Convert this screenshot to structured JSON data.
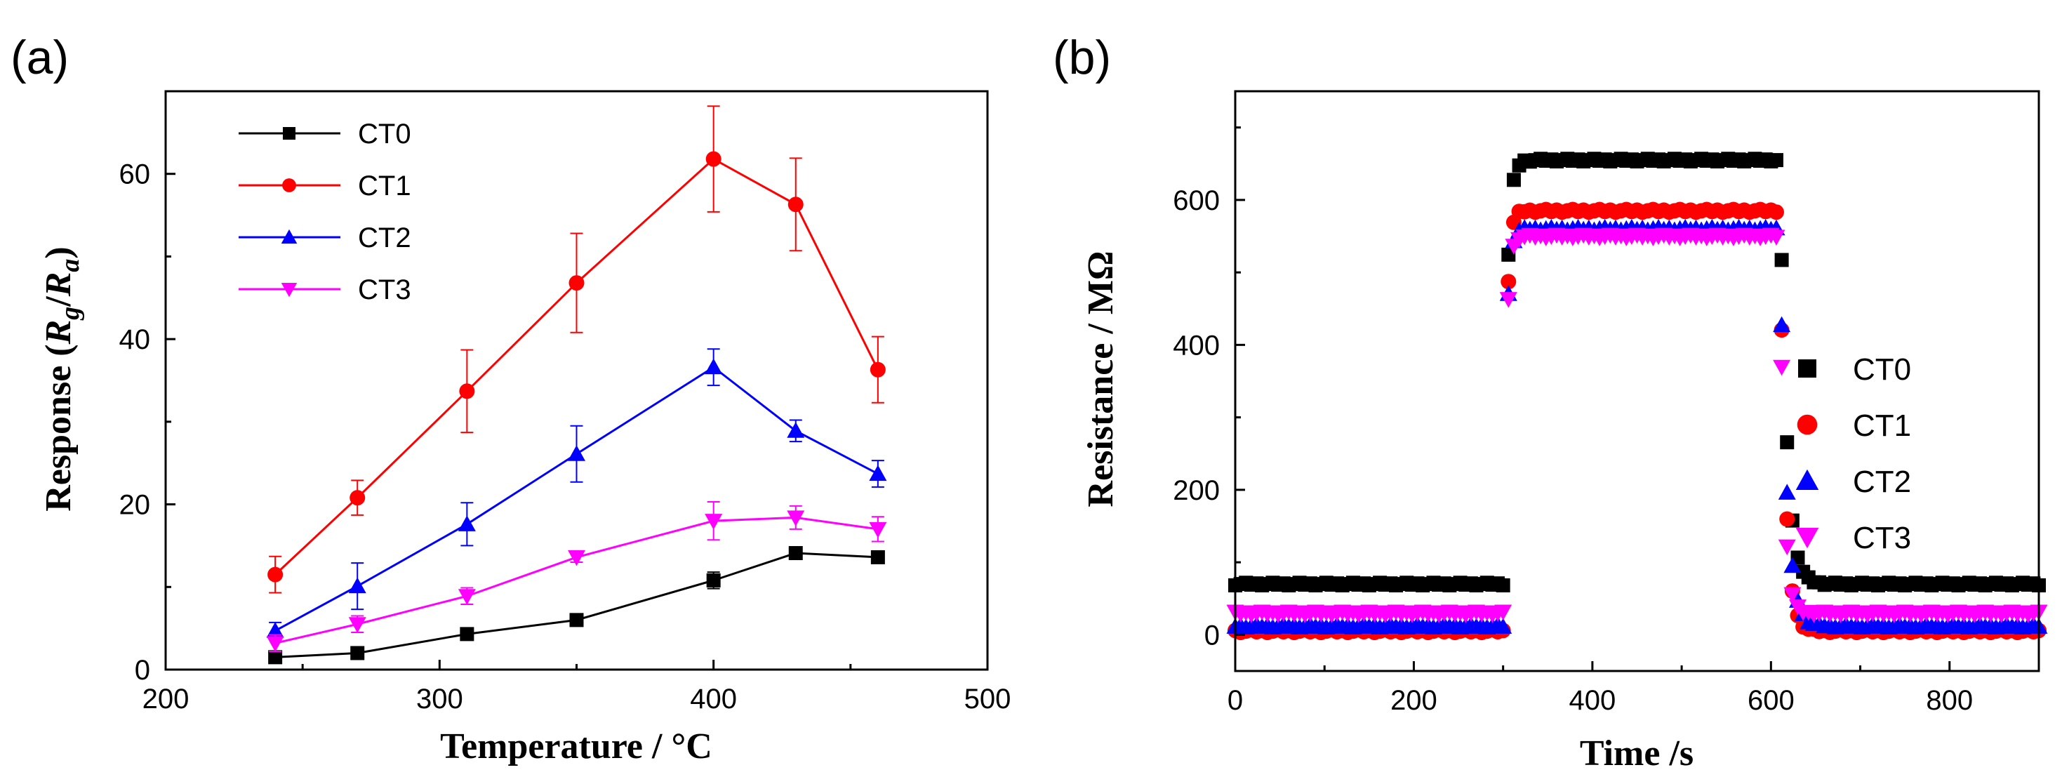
{
  "chart_data": [
    {
      "type": "line",
      "panel_label": "(a)",
      "xlabel": "Temperature / °C",
      "ylabel_prefix": "Response (",
      "ylabel_R1": "R",
      "ylabel_sub1": "g",
      "ylabel_slash": "/",
      "ylabel_R2": "R",
      "ylabel_sub2": "a",
      "ylabel_suffix": ")",
      "xlim": [
        200,
        500
      ],
      "ylim": [
        0,
        70
      ],
      "xticks": [
        200,
        300,
        400,
        500
      ],
      "yticks": [
        0,
        20,
        40,
        60
      ],
      "legend_position": "top-left",
      "x": [
        240,
        270,
        310,
        350,
        400,
        430,
        460
      ],
      "series": [
        {
          "name": "CT0",
          "color": "#000000",
          "marker": "square",
          "values": [
            1.5,
            2.0,
            4.3,
            6.0,
            10.8,
            14.1,
            13.6
          ],
          "errors": [
            0.3,
            0.4,
            0.4,
            0.7,
            1.0,
            0.6,
            0.4
          ]
        },
        {
          "name": "CT1",
          "color": "#ff0000",
          "marker": "circle",
          "values": [
            11.5,
            20.8,
            33.7,
            46.8,
            61.8,
            56.3,
            36.3
          ],
          "errors": [
            2.2,
            2.1,
            5.0,
            6.0,
            6.4,
            5.6,
            4.0
          ]
        },
        {
          "name": "CT2",
          "color": "#0000ff",
          "marker": "triangle-up",
          "values": [
            4.7,
            10.1,
            17.6,
            26.1,
            36.6,
            28.9,
            23.7
          ],
          "errors": [
            1.0,
            2.8,
            2.6,
            3.4,
            2.2,
            1.3,
            1.6
          ]
        },
        {
          "name": "CT3",
          "color": "#ff00ff",
          "marker": "triangle-down",
          "values": [
            3.2,
            5.5,
            8.9,
            13.6,
            18.0,
            18.4,
            17.0
          ],
          "errors": [
            1.0,
            1.0,
            1.0,
            0.6,
            2.3,
            1.4,
            1.5
          ]
        }
      ]
    },
    {
      "type": "scatter",
      "panel_label": "(b)",
      "xlabel": "Time /s",
      "ylabel": "Resistance / MΩ",
      "xlim": [
        0,
        900
      ],
      "ylim": [
        -50,
        750
      ],
      "xticks": [
        0,
        200,
        400,
        600,
        800
      ],
      "yticks": [
        0,
        200,
        400,
        600
      ],
      "legend_position": "right",
      "gas_on_s": 300,
      "gas_off_s": 610,
      "series": [
        {
          "name": "CT0",
          "color": "#000000",
          "marker": "square",
          "baseline": 70,
          "plateau": 655,
          "rise_s": 12,
          "recovery_s": 22
        },
        {
          "name": "CT1",
          "color": "#ff0000",
          "marker": "circle",
          "baseline": 5,
          "plateau": 585,
          "rise_s": 10,
          "recovery_s": 18
        },
        {
          "name": "CT2",
          "color": "#0000ff",
          "marker": "triangle-up",
          "baseline": 12,
          "plateau": 560,
          "rise_s": 10,
          "recovery_s": 22
        },
        {
          "name": "CT3",
          "color": "#ff00ff",
          "marker": "triangle-down",
          "baseline": 30,
          "plateau": 550,
          "rise_s": 10,
          "recovery_s": 14
        }
      ]
    }
  ]
}
